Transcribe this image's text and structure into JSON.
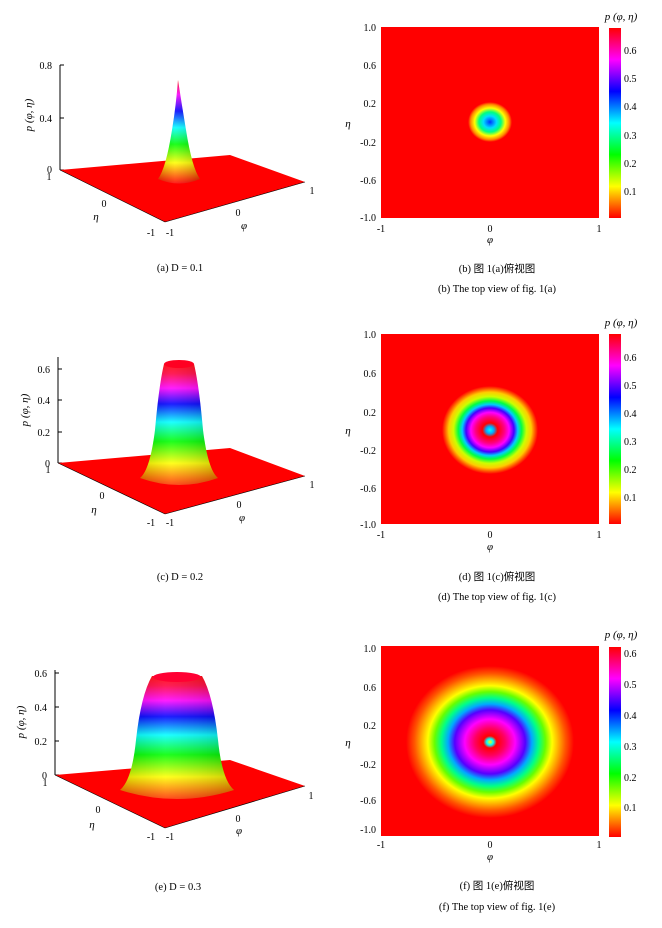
{
  "colors": {
    "colormap": [
      "#ff0000",
      "#ffff00",
      "#00ff00",
      "#00ffff",
      "#0000ff",
      "#ff00ff",
      "#ff0000"
    ],
    "surface_base": "#ff0000"
  },
  "chart_data": [
    {
      "type": "surface3d",
      "panel": "a",
      "caption": "(a) D = 0.1",
      "D": 0.1,
      "x_axis_label": "φ",
      "y_axis_label": "η",
      "z_axis_label": "p (φ, η)",
      "x_ticks": [
        "-1",
        "0",
        "1"
      ],
      "y_ticks": [
        "-1",
        "0",
        "1"
      ],
      "z_ticks": [
        "0",
        "0.4",
        "0.8"
      ],
      "xlim": [
        -1,
        1
      ],
      "ylim": [
        -1,
        1
      ],
      "zlim": [
        0,
        0.8
      ],
      "peak": 0.69
    },
    {
      "type": "heatmap",
      "panel": "b",
      "caption_cn": "(b) 图 1(a)俯视图",
      "caption_en": "(b) The top view of fig. 1(a)",
      "x_axis_label": "φ",
      "y_axis_label": "η",
      "colorbar_title": "p (φ, η)",
      "x_ticks": [
        "-1",
        "0",
        "1"
      ],
      "y_ticks": [
        "1.0",
        "0.6",
        "0.2",
        "-0.2",
        "-0.6",
        "-1.0"
      ],
      "colorbar_ticks": [
        "0.1",
        "0.2",
        "0.3",
        "0.4",
        "0.5",
        "0.6"
      ],
      "xlim": [
        -1,
        1
      ],
      "ylim": [
        -1,
        1
      ],
      "colorbar_range": [
        0,
        0.69
      ],
      "D": 0.1
    },
    {
      "type": "surface3d",
      "panel": "c",
      "caption": "(c) D = 0.2",
      "D": 0.2,
      "x_axis_label": "φ",
      "y_axis_label": "η",
      "z_axis_label": "p (φ, η)",
      "x_ticks": [
        "-1",
        "0",
        "1"
      ],
      "y_ticks": [
        "-1",
        "0",
        "1"
      ],
      "z_ticks": [
        "0",
        "0.2",
        "0.4",
        "0.6"
      ],
      "xlim": [
        -1,
        1
      ],
      "ylim": [
        -1,
        1
      ],
      "zlim": [
        0,
        0.7
      ],
      "peak": 0.66
    },
    {
      "type": "heatmap",
      "panel": "d",
      "caption_cn": "(d) 图 1(c)俯视图",
      "caption_en": "(d) The top view of fig. 1(c)",
      "x_axis_label": "φ",
      "y_axis_label": "η",
      "colorbar_title": "p (φ, η)",
      "x_ticks": [
        "-1",
        "0",
        "1"
      ],
      "y_ticks": [
        "1.0",
        "0.6",
        "0.2",
        "-0.2",
        "-0.6",
        "-1.0"
      ],
      "colorbar_ticks": [
        "0.1",
        "0.2",
        "0.3",
        "0.4",
        "0.5",
        "0.6"
      ],
      "xlim": [
        -1,
        1
      ],
      "ylim": [
        -1,
        1
      ],
      "colorbar_range": [
        0,
        0.69
      ],
      "D": 0.2
    },
    {
      "type": "surface3d",
      "panel": "e",
      "caption": "(e) D = 0.3",
      "D": 0.3,
      "x_axis_label": "φ",
      "y_axis_label": "η",
      "z_axis_label": "p (φ, η)",
      "x_ticks": [
        "-1",
        "0",
        "1"
      ],
      "y_ticks": [
        "-1",
        "0",
        "1"
      ],
      "z_ticks": [
        "0",
        "0.2",
        "0.4",
        "0.6"
      ],
      "xlim": [
        -1,
        1
      ],
      "ylim": [
        -1,
        1
      ],
      "zlim": [
        0,
        0.6
      ],
      "peak": 0.6
    },
    {
      "type": "heatmap",
      "panel": "f",
      "caption_cn": "(f) 图 1(e)俯视图",
      "caption_en": "(f) The top view of fig. 1(e)",
      "x_axis_label": "φ",
      "y_axis_label": "η",
      "colorbar_title": "p (φ, η)",
      "x_ticks": [
        "-1",
        "0",
        "1"
      ],
      "y_ticks": [
        "1.0",
        "0.6",
        "0.2",
        "-0.2",
        "-0.6",
        "-1.0"
      ],
      "colorbar_ticks": [
        "0.1",
        "0.2",
        "0.3",
        "0.4",
        "0.5",
        "0.6"
      ],
      "xlim": [
        -1,
        1
      ],
      "ylim": [
        -1,
        1
      ],
      "colorbar_range": [
        0,
        0.63
      ],
      "D": 0.3
    }
  ]
}
